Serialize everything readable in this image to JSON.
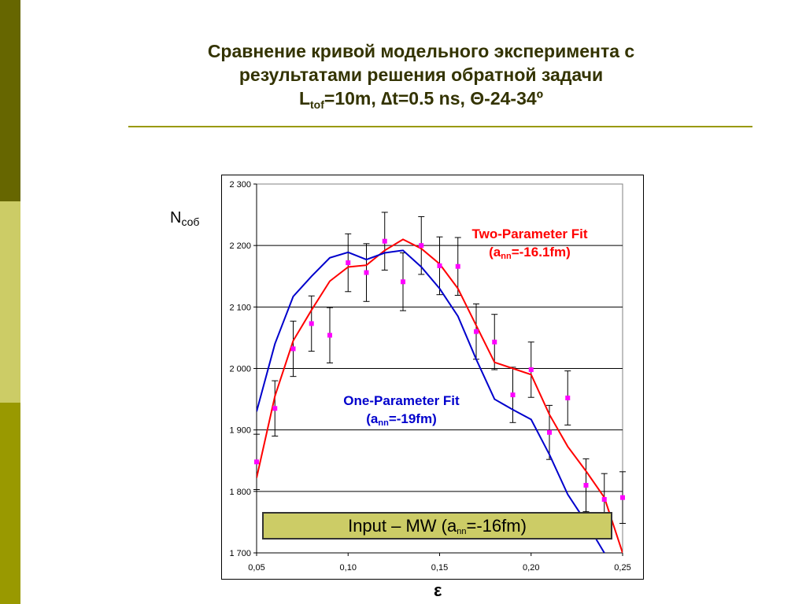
{
  "colors": {
    "strip_top": "#666600",
    "strip_mid": "#cccc66",
    "strip_bottom": "#999900",
    "title": "#333300",
    "title_rule": "#999900",
    "two_param": "#ff0000",
    "one_param": "#0000cc",
    "points": "#ff00ff",
    "input_box": "#cccc66"
  },
  "title": {
    "line1": "Сравнение кривой модельного эксперимента с",
    "line2": "результатами решения обратной задачи",
    "l_main": "L",
    "l_sub": "tof",
    "rest": "=10m, ∆t=0.5 ns, Θ-24-34º"
  },
  "annotations": {
    "two_param_line1": "Two-Parameter Fit",
    "two_param_prefix": "(a",
    "two_param_sub": "nn",
    "two_param_suffix": "=-16.1fm)",
    "one_param_line1": "One-Parameter Fit",
    "one_param_prefix": "(a",
    "one_param_sub": "nn",
    "one_param_suffix": "=-19fm)",
    "input_prefix": "Input – MW (a",
    "input_sub": "nn",
    "input_suffix": "=-16fm)"
  },
  "chart_data": {
    "type": "line",
    "ylabel_main": "N",
    "ylabel_sub": "соб",
    "xlabel": "ε",
    "xlim": [
      0.05,
      0.25
    ],
    "ylim": [
      1700,
      2300
    ],
    "grid": true,
    "x_ticks": [
      {
        "v": 0.05,
        "label": "0,05"
      },
      {
        "v": 0.1,
        "label": "0,10"
      },
      {
        "v": 0.15,
        "label": "0,15"
      },
      {
        "v": 0.2,
        "label": "0,20"
      },
      {
        "v": 0.25,
        "label": "0,25"
      }
    ],
    "y_ticks": [
      {
        "v": 1700,
        "label": "1 700"
      },
      {
        "v": 1800,
        "label": "1 800"
      },
      {
        "v": 1900,
        "label": "1 900"
      },
      {
        "v": 2000,
        "label": "2 000"
      },
      {
        "v": 2100,
        "label": "2 100"
      },
      {
        "v": 2200,
        "label": "2 200"
      },
      {
        "v": 2300,
        "label": "2 300"
      }
    ],
    "series": [
      {
        "name": "Two-Parameter Fit",
        "kind": "line",
        "x": [
          0.05,
          0.06,
          0.07,
          0.08,
          0.09,
          0.1,
          0.11,
          0.12,
          0.13,
          0.14,
          0.15,
          0.16,
          0.17,
          0.18,
          0.19,
          0.2,
          0.21,
          0.22,
          0.23,
          0.24,
          0.25
        ],
        "y": [
          1822,
          1955,
          2045,
          2095,
          2142,
          2165,
          2168,
          2192,
          2210,
          2195,
          2170,
          2130,
          2070,
          2010,
          2000,
          1990,
          1925,
          1873,
          1833,
          1790,
          1700
        ]
      },
      {
        "name": "One-Parameter Fit",
        "kind": "line",
        "x": [
          0.05,
          0.06,
          0.07,
          0.08,
          0.09,
          0.1,
          0.11,
          0.12,
          0.13,
          0.14,
          0.15,
          0.16,
          0.17,
          0.18,
          0.19,
          0.2,
          0.21,
          0.22,
          0.23,
          0.24
        ],
        "y": [
          1930,
          2040,
          2117,
          2150,
          2180,
          2189,
          2177,
          2188,
          2192,
          2165,
          2130,
          2085,
          2015,
          1950,
          1933,
          1917,
          1860,
          1795,
          1750,
          1700
        ]
      },
      {
        "name": "Input data",
        "kind": "points",
        "x": [
          0.05,
          0.06,
          0.07,
          0.08,
          0.09,
          0.1,
          0.11,
          0.12,
          0.13,
          0.14,
          0.15,
          0.16,
          0.17,
          0.18,
          0.19,
          0.2,
          0.21,
          0.22,
          0.23,
          0.24,
          0.25
        ],
        "y": [
          1848,
          1935,
          2032,
          2073,
          2054,
          2172,
          2156,
          2207,
          2141,
          2200,
          2167,
          2166,
          2060,
          2043,
          1957,
          1998,
          1896,
          1952,
          1810,
          1787,
          1790
        ],
        "err": [
          45,
          45,
          45,
          45,
          45,
          47,
          47,
          47,
          47,
          47,
          47,
          47,
          45,
          45,
          45,
          45,
          44,
          44,
          43,
          42,
          42
        ]
      }
    ]
  }
}
